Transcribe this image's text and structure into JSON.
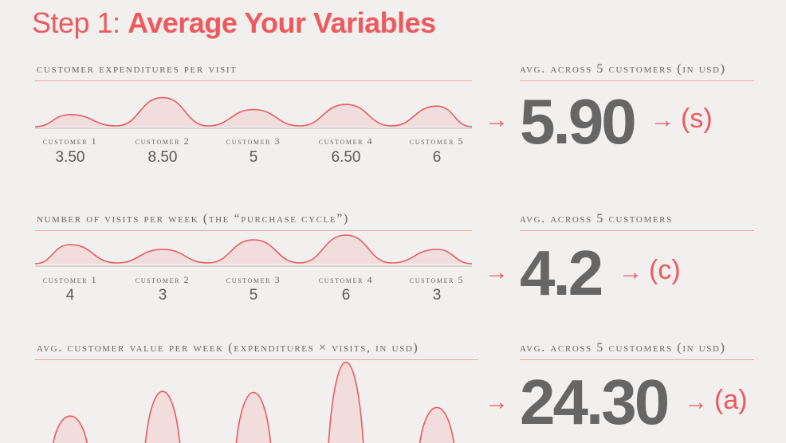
{
  "title": {
    "prefix": "Step 1: ",
    "emphasis": "Average Your Variables"
  },
  "accent_color": "#ec5a5e",
  "customers": [
    "customer 1",
    "customer 2",
    "customer 3",
    "customer 4",
    "customer 5"
  ],
  "sections": [
    {
      "label": "customer expenditures per visit",
      "avg_label": "avg. across 5 customers (in usd)",
      "values_text": [
        "3.50",
        "8.50",
        "5",
        "6.50",
        "6"
      ],
      "average": "5.90",
      "variable": "(s)"
    },
    {
      "label": "number of visits per week (the “purchase cycle”)",
      "avg_label": "avg. across 5 customers",
      "values_text": [
        "4",
        "3",
        "5",
        "6",
        "3"
      ],
      "average": "4.2",
      "variable": "(c)"
    },
    {
      "label": "avg. customer value per week (expenditures × visits, in usd)",
      "avg_label": "avg. across 5 customers (in usd)",
      "values_text": [],
      "average": "24.30",
      "variable": "(a)"
    }
  ],
  "chart_data": [
    {
      "type": "area",
      "categories": [
        "customer 1",
        "customer 2",
        "customer 3",
        "customer 4",
        "customer 5"
      ],
      "values": [
        3.5,
        8.5,
        5,
        6.5,
        6
      ]
    },
    {
      "type": "area",
      "categories": [
        "customer 1",
        "customer 2",
        "customer 3",
        "customer 4",
        "customer 5"
      ],
      "values": [
        4,
        3,
        5,
        6,
        3
      ]
    },
    {
      "type": "area",
      "categories": [
        "customer 1",
        "customer 2",
        "customer 3",
        "customer 4",
        "customer 5"
      ],
      "values": [
        14,
        25.5,
        25,
        39,
        18
      ]
    }
  ],
  "arrow_glyph": "→"
}
